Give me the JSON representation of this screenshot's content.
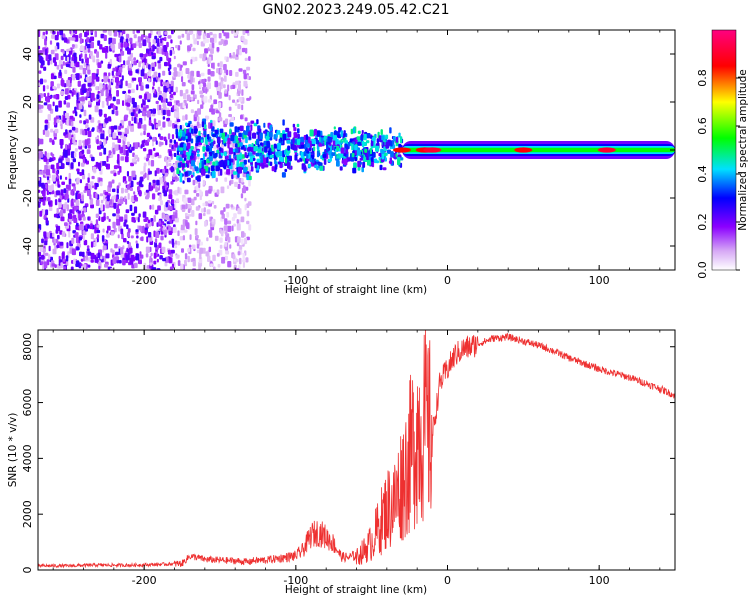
{
  "title": "GN02.2023.249.05.42.C21",
  "chart_data": [
    {
      "type": "heatmap",
      "title": "",
      "xlabel": "Height of straight line (km)",
      "ylabel": "Frequency (Hz)",
      "xlim": [
        -270,
        150
      ],
      "ylim": [
        -50,
        50
      ],
      "xticks": [
        -200,
        -100,
        0,
        100
      ],
      "yticks": [
        -40,
        -20,
        0,
        20,
        40
      ],
      "colorbar": {
        "label": "Normalized spectral amplitude",
        "range": [
          0,
          1
        ],
        "ticks": [
          "0.0",
          "0.2",
          "0.4",
          "0.6",
          "0.8"
        ],
        "colors": [
          "#ffffff",
          "#d6a8f5",
          "#8b00ff",
          "#0000ff",
          "#00e0ff",
          "#00ff00",
          "#ffff00",
          "#ff0000",
          "#ff0080"
        ]
      },
      "regions": [
        {
          "x_range": [
            -270,
            -180
          ],
          "freq_range": [
            -50,
            50
          ],
          "amplitude": 0.15,
          "pattern": "scattered noise"
        },
        {
          "x_range": [
            -180,
            -130
          ],
          "freq_range": [
            -50,
            50
          ],
          "amplitude": 0.08,
          "pattern": "sparse noise"
        },
        {
          "x_range": [
            -180,
            -30
          ],
          "freq_range": [
            -15,
            15
          ],
          "amplitude": 0.35,
          "pattern": "dense band"
        },
        {
          "x_range": [
            -30,
            150
          ],
          "freq_range": [
            -5,
            5
          ],
          "amplitude": 0.5,
          "pattern": "narrow band at 0 Hz"
        }
      ],
      "hotspots": [
        {
          "x": -30,
          "amplitude": 0.85
        },
        {
          "x": -15,
          "amplitude": 0.85
        },
        {
          "x": -10,
          "amplitude": 0.9
        },
        {
          "x": 50,
          "amplitude": 0.85
        },
        {
          "x": 105,
          "amplitude": 0.9
        }
      ]
    },
    {
      "type": "line",
      "title": "",
      "xlabel": "Height of straight line (km)",
      "ylabel": "SNR (10 * v/v)",
      "xlim": [
        -270,
        150
      ],
      "ylim": [
        0,
        8600
      ],
      "xticks": [
        -200,
        -100,
        0,
        100
      ],
      "yticks": [
        0,
        2000,
        4000,
        6000,
        8000
      ],
      "color": "#ee3030",
      "series": [
        {
          "x": [
            -270,
            -250,
            -230,
            -210,
            -190,
            -175,
            -170,
            -165,
            -160,
            -150,
            -140,
            -130,
            -120,
            -110,
            -100,
            -95,
            -90,
            -85,
            -80,
            -75,
            -70,
            -65,
            -60,
            -55,
            -50,
            -45,
            -40,
            -35,
            -30,
            -25,
            -20,
            -15,
            -10,
            -5,
            0,
            5,
            10,
            20,
            30,
            40,
            50,
            60,
            70,
            80,
            90,
            100,
            110,
            120,
            130,
            140,
            150
          ],
          "y": [
            150,
            150,
            180,
            170,
            200,
            230,
            500,
            450,
            380,
            350,
            330,
            280,
            300,
            360,
            430,
            620,
            1050,
            1150,
            1000,
            800,
            400,
            380,
            450,
            700,
            1000,
            1600,
            2200,
            2400,
            3200,
            4000,
            5000,
            5200,
            4800,
            6700,
            7200,
            7700,
            7900,
            8100,
            8300,
            8350,
            8200,
            8050,
            7850,
            7600,
            7400,
            7200,
            7050,
            6900,
            6700,
            6500,
            6250
          ]
        }
      ]
    }
  ]
}
